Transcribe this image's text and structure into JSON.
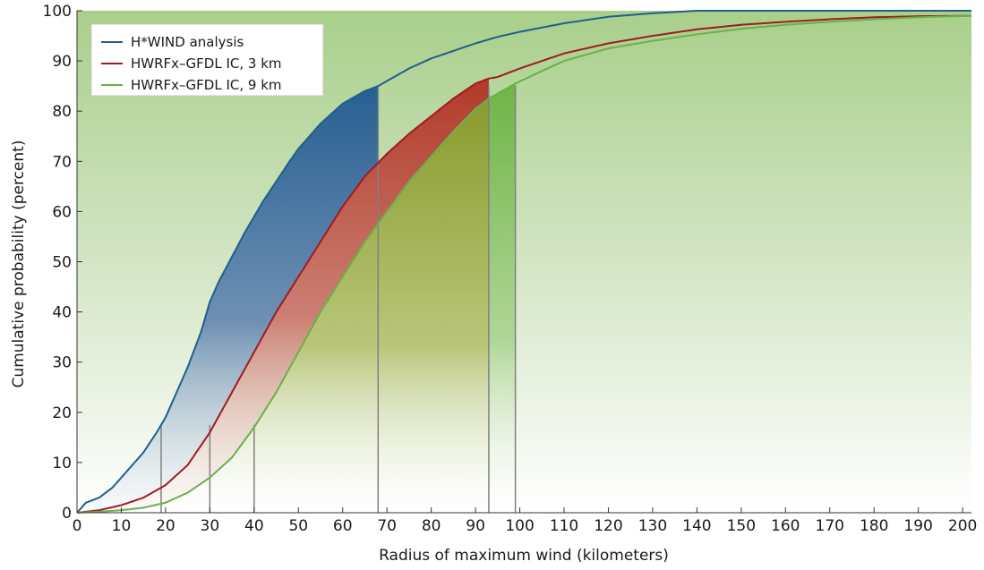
{
  "chart_data": {
    "type": "line",
    "xlabel": "Radius of maximum wind (kilometers)",
    "ylabel": "Cumulative probability (percent)",
    "xlim": [
      0,
      202
    ],
    "ylim": [
      0,
      100
    ],
    "x_ticks": [
      0,
      10,
      20,
      30,
      40,
      50,
      60,
      70,
      80,
      90,
      100,
      110,
      120,
      130,
      140,
      150,
      160,
      170,
      180,
      190,
      200
    ],
    "y_ticks": [
      0,
      10,
      20,
      30,
      40,
      50,
      60,
      70,
      80,
      90,
      100
    ],
    "grid": false,
    "legend_position": "top-left",
    "background": "green-to-white vertical gradient",
    "series": [
      {
        "name": "H*WIND analysis",
        "color": "#1f5f8b",
        "x": [
          0,
          2,
          5,
          8,
          10,
          12,
          15,
          18,
          20,
          22,
          25,
          28,
          30,
          32,
          35,
          38,
          40,
          42,
          45,
          48,
          50,
          55,
          60,
          65,
          68,
          70,
          75,
          80,
          85,
          90,
          95,
          100,
          110,
          120,
          130,
          140,
          150,
          160,
          170,
          180,
          190,
          202
        ],
        "y": [
          0,
          2,
          3,
          5,
          7,
          9,
          12,
          16,
          19,
          23,
          29,
          36,
          42,
          46,
          51,
          56,
          59,
          62,
          66,
          70,
          72.5,
          77.5,
          81.5,
          84,
          85,
          86,
          88.5,
          90.5,
          92,
          93.5,
          94.8,
          95.8,
          97.5,
          98.8,
          99.5,
          100,
          100,
          100,
          100,
          100,
          100,
          100
        ]
      },
      {
        "name": "HWRFx–GFDL IC, 3 km",
        "color": "#9e1b22",
        "x": [
          0,
          5,
          10,
          15,
          20,
          25,
          30,
          35,
          40,
          45,
          50,
          55,
          60,
          65,
          70,
          75,
          80,
          85,
          90,
          93,
          95,
          100,
          110,
          120,
          130,
          140,
          150,
          160,
          170,
          180,
          190,
          202
        ],
        "y": [
          0,
          0.5,
          1.5,
          3,
          5.5,
          9.5,
          16,
          24,
          32,
          40,
          47,
          54,
          61,
          67,
          71.5,
          75.5,
          79,
          82.5,
          85.5,
          86.5,
          86.8,
          88.5,
          91.5,
          93.5,
          95,
          96.3,
          97.2,
          97.8,
          98.3,
          98.7,
          98.9,
          99
        ]
      },
      {
        "name": "HWRFx–GFDL IC, 9 km",
        "color": "#6ab04c",
        "x": [
          0,
          5,
          10,
          15,
          20,
          25,
          30,
          35,
          40,
          45,
          50,
          55,
          60,
          65,
          70,
          75,
          80,
          85,
          90,
          93,
          95,
          99,
          105,
          110,
          120,
          130,
          140,
          150,
          160,
          170,
          180,
          190,
          202
        ],
        "y": [
          0,
          0.2,
          0.5,
          1,
          2,
          4,
          7,
          11,
          17,
          24,
          32,
          40,
          47,
          54,
          60,
          66,
          71,
          76,
          80.5,
          82.5,
          83.5,
          85.5,
          88,
          90,
          92.5,
          94,
          95.3,
          96.4,
          97.2,
          97.8,
          98.3,
          98.7,
          99
        ]
      }
    ],
    "markers": [
      {
        "x": 19,
        "y_top": 17.5
      },
      {
        "x": 30,
        "y_top": 17.5
      },
      {
        "x": 40,
        "y_top": 17.5
      },
      {
        "x": 68,
        "y_top": 85
      },
      {
        "x": 93,
        "y_top": 85
      },
      {
        "x": 99,
        "y_top": 85
      }
    ],
    "shaded_bands": [
      {
        "between": [
          "H*WIND analysis",
          "HWRFx–GFDL IC, 3 km"
        ],
        "color": "#2c5f9a",
        "x_end": 68
      },
      {
        "between": [
          "HWRFx–GFDL IC, 3 km",
          "HWRFx–GFDL IC, 9 km"
        ],
        "color": "#c0392b",
        "x_end": 93
      },
      {
        "below": "HWRFx–GFDL IC, 9 km",
        "color": "#8a9a2e",
        "x_end": 93
      },
      {
        "below": "HWRFx–GFDL IC, 9 km",
        "color": "#76b84a",
        "x_start": 93,
        "x_end": 99
      }
    ]
  }
}
